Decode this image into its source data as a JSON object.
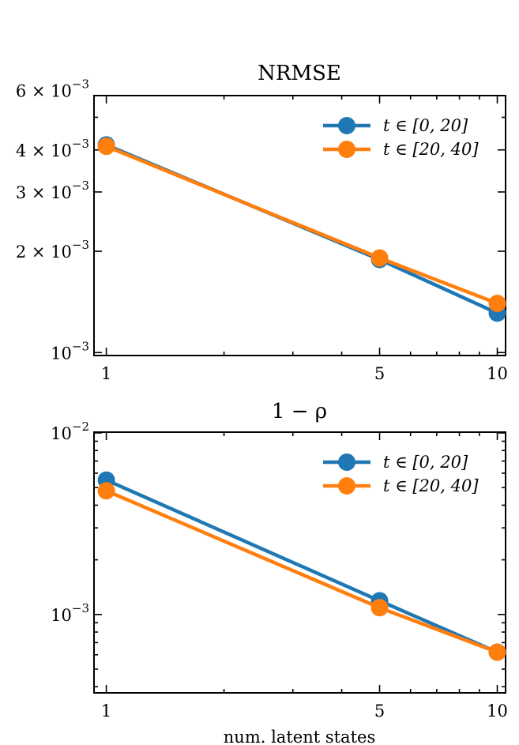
{
  "chart_data": [
    {
      "type": "line",
      "title": "NRMSE",
      "xscale": "log",
      "yscale": "log",
      "xlim": [
        0.93,
        10.5
      ],
      "ylim": [
        0.00098,
        0.0058
      ],
      "xticks": [
        1,
        5,
        10
      ],
      "xtick_labels": [
        "1",
        "5",
        "10"
      ],
      "yticks": [
        0.001,
        0.002,
        0.003,
        0.004,
        0.006
      ],
      "ytick_labels": [
        {
          "base": "10",
          "sup": "−3"
        },
        {
          "base": "2 × 10",
          "sup": "−3"
        },
        {
          "base": "3 × 10",
          "sup": "−3"
        },
        {
          "base": "4 × 10",
          "sup": "−3"
        },
        {
          "base": "6 × 10",
          "sup": "−3"
        }
      ],
      "legend_position": "top-right",
      "series": [
        {
          "name": "t ∈ [0, 20]",
          "color": "#1f77b4",
          "x": [
            1,
            5,
            10
          ],
          "y": [
            0.00414,
            0.00189,
            0.00131
          ]
        },
        {
          "name": "t ∈ [20, 40]",
          "color": "#ff7f0e",
          "x": [
            1,
            5,
            10
          ],
          "y": [
            0.0041,
            0.00191,
            0.0014
          ]
        }
      ],
      "xlabel": ""
    },
    {
      "type": "line",
      "title": "1 − ρ",
      "xscale": "log",
      "yscale": "log",
      "xlim": [
        0.93,
        10.5
      ],
      "ylim": [
        0.00037,
        0.0101
      ],
      "xticks": [
        1,
        5,
        10
      ],
      "xtick_labels": [
        "1",
        "5",
        "10"
      ],
      "yticks": [
        0.001,
        0.01
      ],
      "ytick_labels": [
        {
          "base": "10",
          "sup": "−3"
        },
        {
          "base": "10",
          "sup": "−2"
        }
      ],
      "legend_position": "top-right",
      "series": [
        {
          "name": "t ∈ [0, 20]",
          "color": "#1f77b4",
          "x": [
            1,
            5,
            10
          ],
          "y": [
            0.0055,
            0.00119,
            0.00062
          ]
        },
        {
          "name": "t ∈ [20, 40]",
          "color": "#ff7f0e",
          "x": [
            1,
            5,
            10
          ],
          "y": [
            0.0048,
            0.00109,
            0.00062
          ]
        }
      ],
      "xlabel": "num. latent states"
    }
  ]
}
